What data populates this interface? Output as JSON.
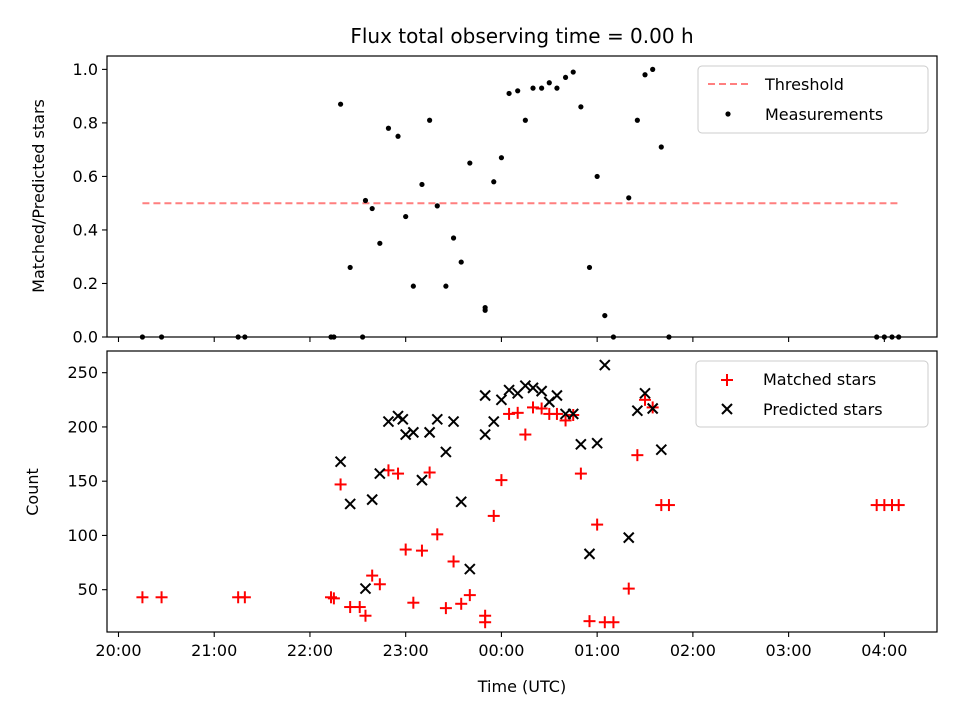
{
  "chart_data": {
    "title": "Flux total observing time = 0.00 h",
    "xlabel": "Time (UTC)",
    "xlim_hours": [
      19.88,
      28.55
    ],
    "x_ticks": [
      {
        "value": 20,
        "label": "20:00"
      },
      {
        "value": 21,
        "label": "21:00"
      },
      {
        "value": 22,
        "label": "22:00"
      },
      {
        "value": 23,
        "label": "23:00"
      },
      {
        "value": 24,
        "label": "00:00"
      },
      {
        "value": 25,
        "label": "01:00"
      },
      {
        "value": 26,
        "label": "02:00"
      },
      {
        "value": 27,
        "label": "03:00"
      },
      {
        "value": 28,
        "label": "04:00"
      }
    ],
    "panels": [
      {
        "type": "scatter",
        "ylabel": "Matched/Predicted stars",
        "ylim": [
          0,
          1.05
        ],
        "y_ticks": [
          {
            "value": 0,
            "label": "0.0"
          },
          {
            "value": 0.2,
            "label": "0.2"
          },
          {
            "value": 0.4,
            "label": "0.4"
          },
          {
            "value": 0.6,
            "label": "0.6"
          },
          {
            "value": 0.8,
            "label": "0.8"
          },
          {
            "value": 1.0,
            "label": "1.0"
          }
        ],
        "legend": {
          "position": "top-right",
          "entries": [
            "Threshold",
            "Measurements"
          ]
        },
        "threshold": {
          "name": "Threshold",
          "value": 0.5,
          "x_range": [
            20.25,
            28.15
          ],
          "color": "#ff7f7f"
        },
        "series": [
          {
            "name": "Measurements",
            "color": "#000000",
            "marker": "dot",
            "points": [
              [
                20.25,
                0.0
              ],
              [
                20.45,
                0.0
              ],
              [
                21.25,
                0.0
              ],
              [
                21.32,
                0.0
              ],
              [
                22.22,
                0.0
              ],
              [
                22.25,
                0.0
              ],
              [
                22.55,
                0.0
              ],
              [
                22.32,
                0.87
              ],
              [
                22.42,
                0.26
              ],
              [
                22.58,
                0.51
              ],
              [
                22.65,
                0.48
              ],
              [
                22.73,
                0.35
              ],
              [
                22.82,
                0.78
              ],
              [
                22.92,
                0.75
              ],
              [
                23.0,
                0.45
              ],
              [
                23.08,
                0.19
              ],
              [
                23.17,
                0.57
              ],
              [
                23.25,
                0.81
              ],
              [
                23.33,
                0.49
              ],
              [
                23.42,
                0.19
              ],
              [
                23.5,
                0.37
              ],
              [
                23.58,
                0.28
              ],
              [
                23.67,
                0.65
              ],
              [
                23.83,
                0.11
              ],
              [
                23.83,
                0.1
              ],
              [
                23.92,
                0.58
              ],
              [
                24.0,
                0.67
              ],
              [
                24.08,
                0.91
              ],
              [
                24.17,
                0.92
              ],
              [
                24.25,
                0.81
              ],
              [
                24.33,
                0.93
              ],
              [
                24.42,
                0.93
              ],
              [
                24.5,
                0.95
              ],
              [
                24.58,
                0.93
              ],
              [
                24.67,
                0.97
              ],
              [
                24.75,
                0.99
              ],
              [
                24.83,
                0.86
              ],
              [
                24.92,
                0.26
              ],
              [
                25.0,
                0.6
              ],
              [
                25.08,
                0.08
              ],
              [
                25.17,
                0.0
              ],
              [
                25.33,
                0.52
              ],
              [
                25.42,
                0.81
              ],
              [
                25.5,
                0.98
              ],
              [
                25.58,
                1.0
              ],
              [
                25.67,
                0.71
              ],
              [
                25.75,
                0.0
              ],
              [
                27.92,
                0.0
              ],
              [
                28.0,
                0.0
              ],
              [
                28.08,
                0.0
              ],
              [
                28.15,
                0.0
              ]
            ]
          }
        ]
      },
      {
        "type": "scatter",
        "ylabel": "Count",
        "ylim": [
          11,
          270
        ],
        "y_ticks": [
          {
            "value": 50,
            "label": "50"
          },
          {
            "value": 100,
            "label": "100"
          },
          {
            "value": 150,
            "label": "150"
          },
          {
            "value": 200,
            "label": "200"
          },
          {
            "value": 250,
            "label": "250"
          }
        ],
        "legend": {
          "position": "top-right",
          "entries": [
            "Matched stars",
            "Predicted stars"
          ]
        },
        "series": [
          {
            "name": "Matched stars",
            "color": "#ff0000",
            "marker": "plus",
            "points": [
              [
                20.25,
                43
              ],
              [
                20.45,
                43
              ],
              [
                21.25,
                43
              ],
              [
                21.32,
                43
              ],
              [
                22.22,
                43
              ],
              [
                22.25,
                42
              ],
              [
                22.32,
                147
              ],
              [
                22.42,
                34
              ],
              [
                22.52,
                34
              ],
              [
                22.58,
                26
              ],
              [
                22.65,
                63
              ],
              [
                22.73,
                55
              ],
              [
                22.82,
                160
              ],
              [
                22.92,
                157
              ],
              [
                23.0,
                87
              ],
              [
                23.08,
                38
              ],
              [
                23.17,
                86
              ],
              [
                23.25,
                158
              ],
              [
                23.33,
                101
              ],
              [
                23.42,
                33
              ],
              [
                23.5,
                76
              ],
              [
                23.58,
                37
              ],
              [
                23.67,
                45
              ],
              [
                23.83,
                26
              ],
              [
                23.83,
                20
              ],
              [
                23.92,
                118
              ],
              [
                24.0,
                151
              ],
              [
                24.08,
                212
              ],
              [
                24.17,
                213
              ],
              [
                24.25,
                193
              ],
              [
                24.33,
                218
              ],
              [
                24.42,
                217
              ],
              [
                24.5,
                212
              ],
              [
                24.58,
                212
              ],
              [
                24.67,
                206
              ],
              [
                24.75,
                211
              ],
              [
                24.83,
                157
              ],
              [
                24.92,
                21
              ],
              [
                25.0,
                110
              ],
              [
                25.08,
                20
              ],
              [
                25.17,
                20
              ],
              [
                25.33,
                51
              ],
              [
                25.42,
                174
              ],
              [
                25.5,
                225
              ],
              [
                25.58,
                218
              ],
              [
                25.67,
                128
              ],
              [
                25.75,
                128
              ],
              [
                27.92,
                128
              ],
              [
                28.0,
                128
              ],
              [
                28.08,
                128
              ],
              [
                28.15,
                128
              ]
            ]
          },
          {
            "name": "Predicted stars",
            "color": "#000000",
            "marker": "x",
            "points": [
              [
                22.32,
                168
              ],
              [
                22.42,
                129
              ],
              [
                22.58,
                51
              ],
              [
                22.65,
                133
              ],
              [
                22.73,
                157
              ],
              [
                22.82,
                205
              ],
              [
                22.92,
                210
              ],
              [
                22.97,
                207
              ],
              [
                23.0,
                193
              ],
              [
                23.08,
                195
              ],
              [
                23.17,
                151
              ],
              [
                23.25,
                195
              ],
              [
                23.33,
                207
              ],
              [
                23.42,
                177
              ],
              [
                23.5,
                205
              ],
              [
                23.58,
                131
              ],
              [
                23.67,
                69
              ],
              [
                23.83,
                193
              ],
              [
                23.83,
                229
              ],
              [
                23.92,
                205
              ],
              [
                24.0,
                225
              ],
              [
                24.08,
                234
              ],
              [
                24.17,
                231
              ],
              [
                24.25,
                238
              ],
              [
                24.33,
                236
              ],
              [
                24.42,
                233
              ],
              [
                24.5,
                223
              ],
              [
                24.58,
                229
              ],
              [
                24.67,
                212
              ],
              [
                24.75,
                212
              ],
              [
                24.83,
                184
              ],
              [
                24.92,
                83
              ],
              [
                25.0,
                185
              ],
              [
                25.08,
                257
              ],
              [
                25.33,
                98
              ],
              [
                25.42,
                215
              ],
              [
                25.5,
                231
              ],
              [
                25.58,
                217
              ],
              [
                25.67,
                179
              ]
            ]
          }
        ]
      }
    ]
  }
}
